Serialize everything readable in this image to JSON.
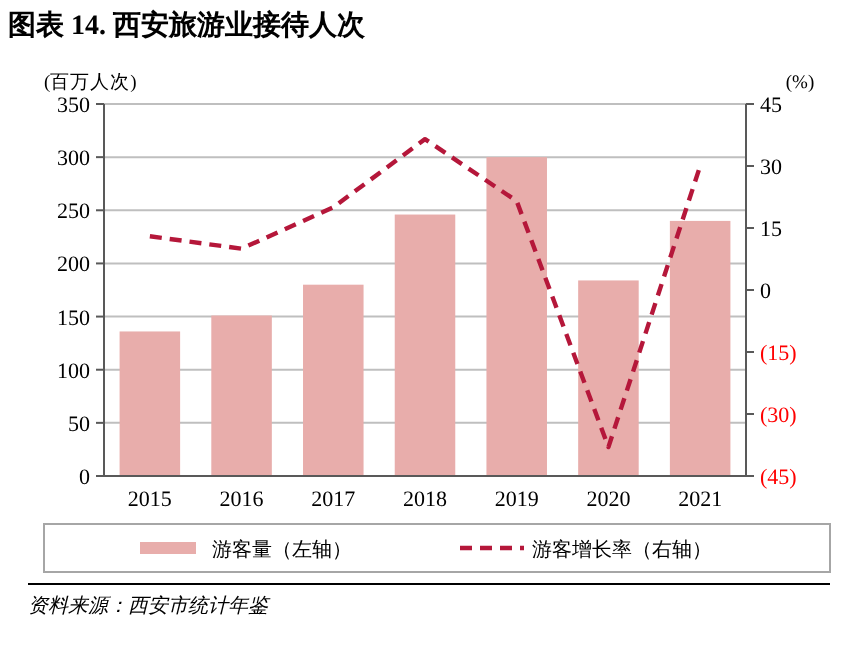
{
  "chart_data": {
    "type": "bar",
    "title": "图表 14. 西安旅游业接待人次",
    "ylabel": "(百万人次)",
    "y2label": "(%)",
    "categories": [
      "2015",
      "2016",
      "2017",
      "2018",
      "2019",
      "2020",
      "2021"
    ],
    "series": [
      {
        "name": "游客量（左轴）",
        "color": "#e8adab",
        "values": [
          136,
          151,
          180,
          246,
          300,
          184,
          240
        ]
      },
      {
        "name": "游客增长率（右轴）",
        "type": "line",
        "axis": "y2",
        "color": "#b5173a",
        "line_style": "dashed",
        "values": [
          13,
          10,
          20,
          36.5,
          21.5,
          -38,
          30
        ]
      }
    ],
    "ylim": [
      0,
      350
    ],
    "yticks": [
      0,
      50,
      100,
      150,
      200,
      250,
      300,
      350
    ],
    "y2lim": [
      -45,
      45
    ],
    "y2ticks": [
      {
        "value": -45,
        "label": "(45)"
      },
      {
        "value": -30,
        "label": "(30)"
      },
      {
        "value": -15,
        "label": "(15)"
      },
      0,
      15,
      30,
      45
    ],
    "grid": "y",
    "legend": "bottom",
    "marker": "none",
    "annotations": [
      "资料来源：西安市统计年鉴"
    ]
  }
}
